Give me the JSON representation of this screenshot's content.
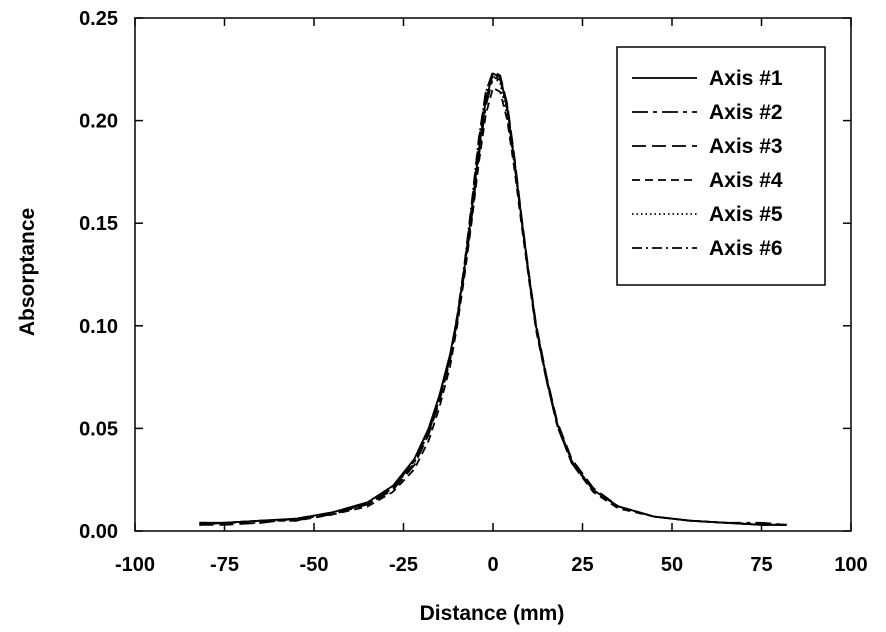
{
  "chart_data": {
    "type": "line",
    "title": "",
    "xlabel": "Distance (mm)",
    "ylabel": "Absorptance",
    "xlim": [
      -100,
      100
    ],
    "ylim": [
      0.0,
      0.25
    ],
    "xticks": [
      -100,
      -75,
      -50,
      -25,
      0,
      25,
      50,
      75,
      100
    ],
    "yticks": [
      0.0,
      0.05,
      0.1,
      0.15,
      0.2,
      0.25
    ],
    "xtick_labels": [
      "-100",
      "-75",
      "-50",
      "-25",
      "0",
      "25",
      "50",
      "75",
      "100"
    ],
    "ytick_labels": [
      "0.00",
      "0.05",
      "0.10",
      "0.15",
      "0.20",
      "0.25"
    ],
    "grid": false,
    "legend_position": "top-right",
    "x": [
      -82,
      -75,
      -65,
      -55,
      -45,
      -35,
      -28,
      -22,
      -18,
      -15,
      -12,
      -10,
      -8,
      -6,
      -4,
      -2,
      0,
      2,
      4,
      6,
      8,
      10,
      12,
      15,
      18,
      22,
      28,
      35,
      45,
      55,
      65,
      75,
      82
    ],
    "series": [
      {
        "name": "Axis #1",
        "dash": "solid",
        "values": [
          0.003,
          0.004,
          0.005,
          0.006,
          0.009,
          0.014,
          0.022,
          0.035,
          0.05,
          0.066,
          0.086,
          0.104,
          0.128,
          0.155,
          0.185,
          0.21,
          0.223,
          0.221,
          0.206,
          0.18,
          0.152,
          0.125,
          0.1,
          0.074,
          0.052,
          0.034,
          0.02,
          0.012,
          0.007,
          0.005,
          0.004,
          0.003,
          0.003
        ]
      },
      {
        "name": "Axis #2",
        "dash": "long-short",
        "values": [
          0.004,
          0.004,
          0.005,
          0.005,
          0.009,
          0.013,
          0.021,
          0.034,
          0.048,
          0.064,
          0.084,
          0.102,
          0.126,
          0.152,
          0.182,
          0.207,
          0.221,
          0.22,
          0.205,
          0.179,
          0.151,
          0.124,
          0.099,
          0.073,
          0.051,
          0.033,
          0.02,
          0.012,
          0.007,
          0.005,
          0.004,
          0.004,
          0.003
        ]
      },
      {
        "name": "Axis #3",
        "dash": "long-dash",
        "values": [
          0.003,
          0.003,
          0.004,
          0.006,
          0.008,
          0.013,
          0.02,
          0.032,
          0.047,
          0.063,
          0.083,
          0.103,
          0.129,
          0.158,
          0.19,
          0.214,
          0.224,
          0.222,
          0.208,
          0.182,
          0.153,
          0.126,
          0.101,
          0.075,
          0.053,
          0.035,
          0.021,
          0.012,
          0.007,
          0.005,
          0.004,
          0.003,
          0.003
        ]
      },
      {
        "name": "Axis #4",
        "dash": "dash",
        "values": [
          0.004,
          0.004,
          0.005,
          0.005,
          0.008,
          0.012,
          0.019,
          0.03,
          0.044,
          0.06,
          0.08,
          0.1,
          0.124,
          0.15,
          0.179,
          0.203,
          0.216,
          0.214,
          0.2,
          0.176,
          0.149,
          0.123,
          0.098,
          0.073,
          0.051,
          0.033,
          0.019,
          0.011,
          0.007,
          0.005,
          0.004,
          0.003,
          0.003
        ]
      },
      {
        "name": "Axis #5",
        "dash": "dotted",
        "values": [
          0.004,
          0.004,
          0.005,
          0.006,
          0.009,
          0.014,
          0.022,
          0.034,
          0.049,
          0.065,
          0.085,
          0.104,
          0.128,
          0.156,
          0.186,
          0.211,
          0.222,
          0.218,
          0.202,
          0.178,
          0.151,
          0.125,
          0.1,
          0.074,
          0.052,
          0.034,
          0.02,
          0.012,
          0.007,
          0.005,
          0.004,
          0.003,
          0.003
        ]
      },
      {
        "name": "Axis #6",
        "dash": "dash-dot",
        "values": [
          0.003,
          0.004,
          0.004,
          0.006,
          0.009,
          0.013,
          0.021,
          0.033,
          0.048,
          0.064,
          0.085,
          0.105,
          0.13,
          0.159,
          0.191,
          0.214,
          0.222,
          0.221,
          0.207,
          0.181,
          0.152,
          0.125,
          0.1,
          0.074,
          0.052,
          0.034,
          0.02,
          0.012,
          0.007,
          0.005,
          0.004,
          0.003,
          0.003
        ]
      }
    ]
  }
}
